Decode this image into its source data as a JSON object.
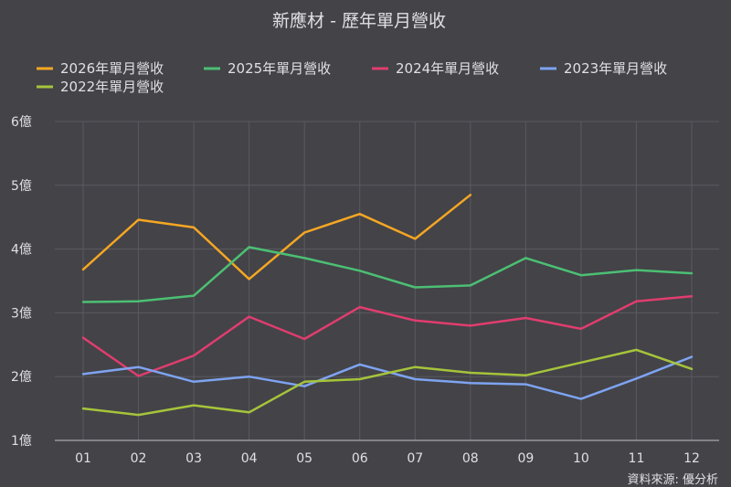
{
  "chart_data": {
    "type": "line",
    "title": "新應材 - 歷年單月營收",
    "source": "資料來源: 優分析",
    "xlabel": "",
    "ylabel": "",
    "categories": [
      "01",
      "02",
      "03",
      "04",
      "05",
      "06",
      "07",
      "08",
      "09",
      "10",
      "11",
      "12"
    ],
    "y_ticks": [
      1,
      2,
      3,
      4,
      5,
      6
    ],
    "y_tick_labels": [
      "1億",
      "2億",
      "3億",
      "4億",
      "5億",
      "6億"
    ],
    "ylim": [
      1,
      6
    ],
    "grid": true,
    "legend_position": "top",
    "series": [
      {
        "name": "2026年單月營收",
        "color": "#f5a623",
        "values": [
          3.68,
          4.46,
          4.34,
          3.53,
          4.26,
          4.55,
          4.16,
          4.85,
          null,
          null,
          null,
          null
        ]
      },
      {
        "name": "2025年單月營收",
        "color": "#4cbf73",
        "values": [
          3.17,
          3.18,
          3.27,
          4.03,
          3.86,
          3.66,
          3.4,
          3.43,
          3.86,
          3.59,
          3.67,
          3.62
        ]
      },
      {
        "name": "2024年單月營收",
        "color": "#e03d6e",
        "values": [
          2.61,
          2.01,
          2.33,
          2.94,
          2.59,
          3.09,
          2.88,
          2.8,
          2.92,
          2.75,
          3.18,
          3.26
        ]
      },
      {
        "name": "2023年單月營收",
        "color": "#7ea3f0",
        "values": [
          2.04,
          2.15,
          1.92,
          2.0,
          1.85,
          2.19,
          1.96,
          1.9,
          1.88,
          1.65,
          1.97,
          2.31
        ]
      },
      {
        "name": "2022年單月營收",
        "color": "#a6c43a",
        "values": [
          1.5,
          1.4,
          1.55,
          1.44,
          1.92,
          1.96,
          2.15,
          2.06,
          2.02,
          2.22,
          2.42,
          2.12
        ]
      }
    ]
  }
}
